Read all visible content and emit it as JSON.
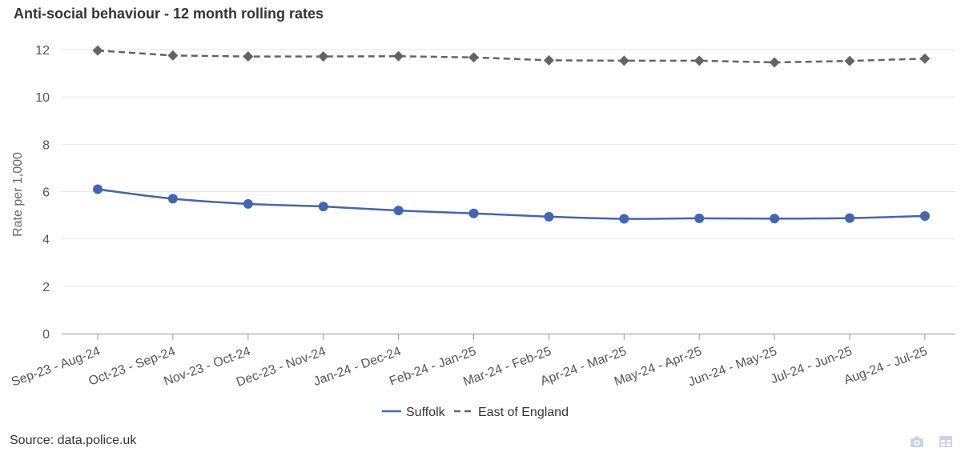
{
  "source_text": "Source: data.police.uk",
  "toolbar": {
    "camera_icon": "camera-icon",
    "table_icon": "table-icon"
  },
  "chart_data": {
    "type": "line",
    "title": "Anti-social behaviour - 12 month rolling rates",
    "xlabel": "",
    "ylabel": "Rate per 1,000",
    "ylim": [
      0,
      12
    ],
    "yticks": [
      0,
      2,
      4,
      6,
      8,
      10,
      12
    ],
    "grid": true,
    "legend_position": "bottom-center",
    "categories": [
      "Sep-23 - Aug-24",
      "Oct-23 - Sep-24",
      "Nov-23 - Oct-24",
      "Dec-23 - Nov-24",
      "Jan-24 - Dec-24",
      "Feb-24 - Jan-25",
      "Mar-24 - Feb-25",
      "Apr-24 - Mar-25",
      "May-24 - Apr-25",
      "Jun-24 - May-25",
      "Jul-24 - Jun-25",
      "Aug-24 - Jul-25"
    ],
    "series": [
      {
        "name": "Suffolk",
        "color": "#4266b5",
        "line_style": "solid",
        "marker": "circle",
        "values": [
          6.1,
          5.7,
          5.48,
          5.37,
          5.2,
          5.08,
          4.94,
          4.85,
          4.87,
          4.86,
          4.88,
          4.97
        ]
      },
      {
        "name": "East of England",
        "color": "#646464",
        "line_style": "dashed",
        "marker": "diamond",
        "values": [
          11.96,
          11.75,
          11.71,
          11.71,
          11.72,
          11.67,
          11.55,
          11.53,
          11.53,
          11.46,
          11.52,
          11.62
        ]
      }
    ]
  }
}
